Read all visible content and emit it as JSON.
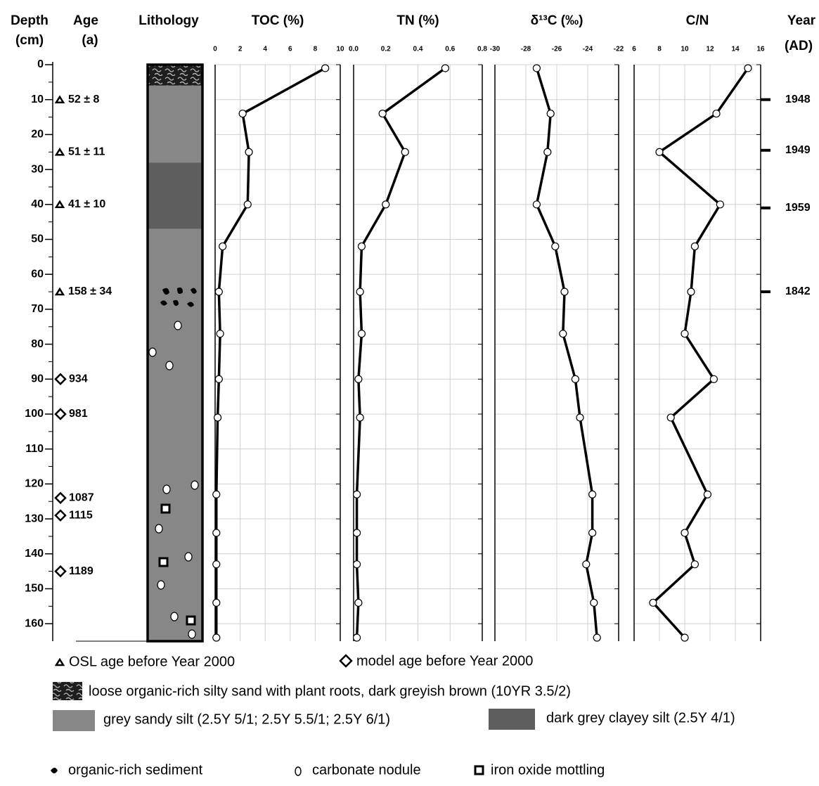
{
  "headers": {
    "depth": [
      "Depth",
      "(cm)"
    ],
    "age": [
      "Age",
      "(a)"
    ],
    "lithology": "Lithology",
    "year": [
      "Year",
      "(AD)"
    ]
  },
  "depth_axis": {
    "ylim": [
      0,
      165
    ],
    "yticks": [
      0,
      10,
      20,
      30,
      40,
      50,
      60,
      70,
      80,
      90,
      100,
      110,
      120,
      130,
      140,
      150,
      160
    ]
  },
  "osl_ages": [
    {
      "depth": 10,
      "label": "52 ± 8"
    },
    {
      "depth": 25,
      "label": "51 ± 11"
    },
    {
      "depth": 40,
      "label": "41 ± 10"
    },
    {
      "depth": 65,
      "label": "158 ± 34"
    }
  ],
  "model_ages": [
    {
      "depth": 90,
      "label": "934"
    },
    {
      "depth": 100,
      "label": "981"
    },
    {
      "depth": 124,
      "label": "1087"
    },
    {
      "depth": 129,
      "label": "1115"
    },
    {
      "depth": 145,
      "label": "1189"
    }
  ],
  "years": [
    {
      "depth": 10,
      "label": 1948
    },
    {
      "depth": 24.5,
      "label": 1949
    },
    {
      "depth": 41,
      "label": 1959
    },
    {
      "depth": 65,
      "label": 1842
    }
  ],
  "lithology": [
    {
      "top": 0,
      "bottom": 6,
      "fill": "pattern"
    },
    {
      "top": 6,
      "bottom": 28,
      "fill": "#878787"
    },
    {
      "top": 28,
      "bottom": 47,
      "fill": "#5e5e5e"
    },
    {
      "top": 47,
      "bottom": 165,
      "fill": "#878787"
    }
  ],
  "legend": {
    "osl": "OSL age before Year 2000",
    "model": "model age before Year 2000",
    "loose": "loose organic-rich silty sand with plant roots, dark greyish brown (10YR 3.5/2)",
    "grey": "grey sandy silt (2.5Y 5/1; 2.5Y 5.5/1; 2.5Y 6/1)",
    "dark": "dark grey clayey silt (2.5Y 4/1)",
    "organic": "organic-rich sediment",
    "nodule": "carbonate nodule",
    "iron": "iron oxide mottling"
  },
  "chart_data": [
    {
      "type": "line",
      "title": "TOC (%)",
      "color": "#000000",
      "xlim": [
        0,
        10
      ],
      "xticks": [
        0,
        2,
        4,
        6,
        8,
        10
      ],
      "ylim": [
        0,
        165
      ],
      "grid": true,
      "depth": [
        1,
        14,
        25,
        40,
        52,
        65,
        77,
        90,
        101,
        123,
        134,
        143,
        154,
        164
      ],
      "values": [
        8.8,
        2.2,
        2.7,
        2.6,
        0.6,
        0.3,
        0.4,
        0.3,
        0.2,
        0.1,
        0.1,
        0.1,
        0.1,
        0.1
      ]
    },
    {
      "type": "line",
      "title": "TN (%)",
      "color": "#000000",
      "xlim": [
        0,
        0.8
      ],
      "xticks": [
        {
          "value": 0,
          "label": "0.0"
        },
        0.2,
        0.4,
        0.6,
        0.8
      ],
      "ylim": [
        0,
        165
      ],
      "grid": true,
      "depth": [
        1,
        14,
        25,
        40,
        52,
        65,
        77,
        90,
        101,
        123,
        134,
        143,
        154,
        164
      ],
      "values": [
        0.57,
        0.18,
        0.32,
        0.2,
        0.05,
        0.04,
        0.05,
        0.03,
        0.04,
        0.02,
        0.02,
        0.02,
        0.03,
        0.02
      ]
    },
    {
      "type": "line",
      "title": "δ¹³C (‰)",
      "color": "#000000",
      "xlim": [
        -30,
        -22
      ],
      "xticks": [
        -30,
        -28,
        -26,
        -24,
        -22
      ],
      "ylim": [
        0,
        165
      ],
      "grid": true,
      "depth": [
        1,
        14,
        25,
        40,
        52,
        65,
        77,
        90,
        101,
        123,
        134,
        143,
        154,
        164
      ],
      "values": [
        -27.3,
        -26.4,
        -26.6,
        -27.3,
        -26.1,
        -25.5,
        -25.6,
        -24.8,
        -24.5,
        -23.7,
        -23.7,
        -24.1,
        -23.6,
        -23.4
      ]
    },
    {
      "type": "line",
      "title": "C/N",
      "color": "#000000",
      "xlim": [
        6,
        16
      ],
      "xticks": [
        6,
        8,
        10,
        12,
        14,
        16
      ],
      "ylim": [
        0,
        165
      ],
      "grid": true,
      "depth": [
        1,
        14,
        25,
        40,
        52,
        65,
        77,
        90,
        101,
        123,
        134,
        143,
        154,
        164
      ],
      "values": [
        15.0,
        12.5,
        8.0,
        12.8,
        10.8,
        10.5,
        10.0,
        12.3,
        8.9,
        11.8,
        10.0,
        10.8,
        7.5,
        10.0
      ]
    }
  ]
}
